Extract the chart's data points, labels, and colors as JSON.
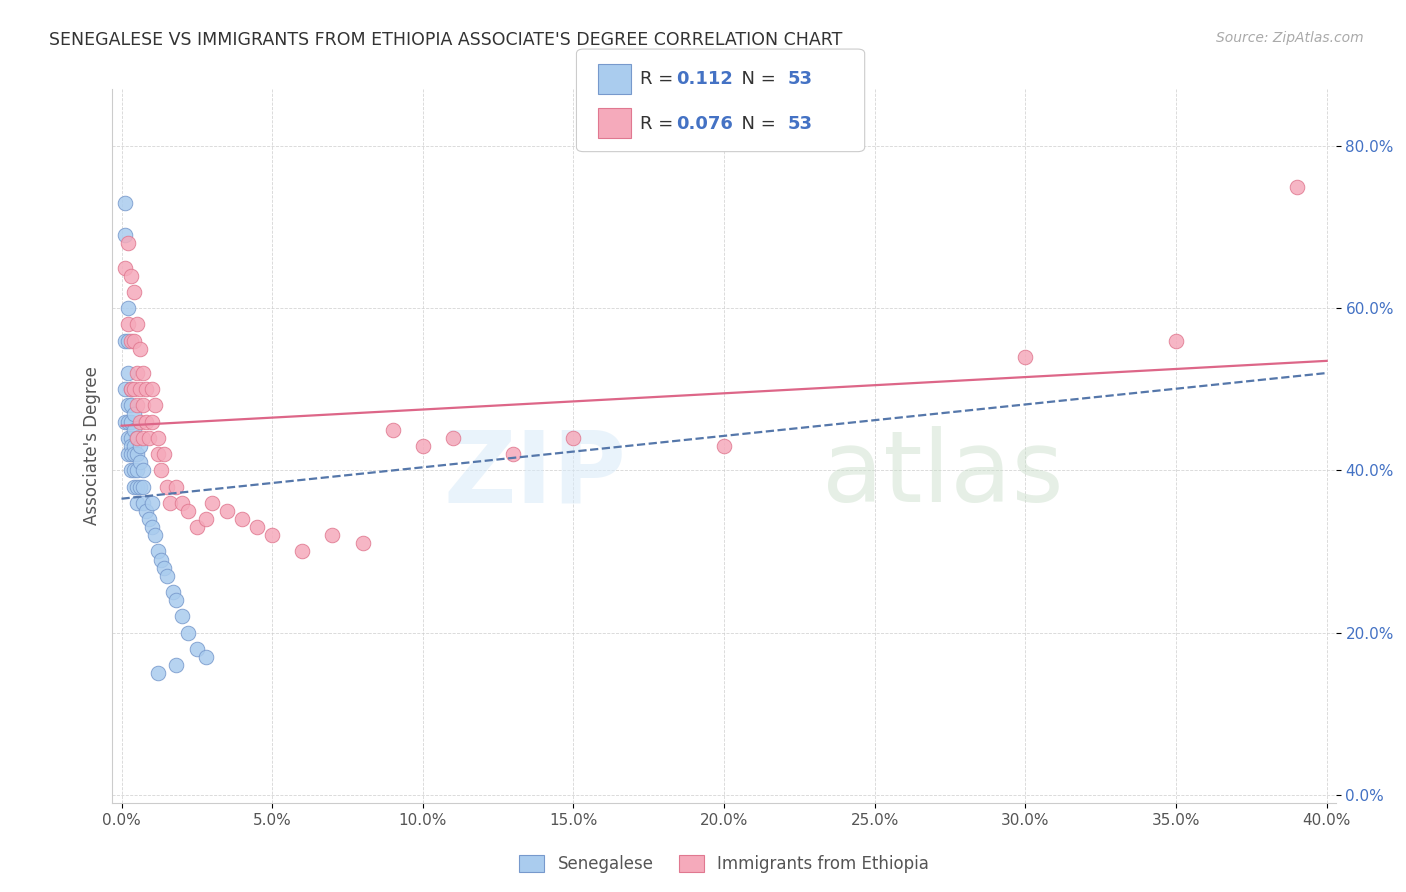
{
  "title": "SENEGALESE VS IMMIGRANTS FROM ETHIOPIA ASSOCIATE'S DEGREE CORRELATION CHART",
  "source": "Source: ZipAtlas.com",
  "ylabel": "Associate's Degree",
  "xlim": [
    -0.003,
    0.403
  ],
  "ylim": [
    -0.01,
    0.87
  ],
  "xticks": [
    0.0,
    0.05,
    0.1,
    0.15,
    0.2,
    0.25,
    0.3,
    0.35,
    0.4
  ],
  "yticks": [
    0.0,
    0.2,
    0.4,
    0.6,
    0.8
  ],
  "xtick_labels": [
    "0.0%",
    "5.0%",
    "10.0%",
    "15.0%",
    "20.0%",
    "25.0%",
    "30.0%",
    "35.0%",
    "40.0%"
  ],
  "ytick_labels": [
    "0.0%",
    "20.0%",
    "40.0%",
    "60.0%",
    "80.0%"
  ],
  "legend_labels": [
    "Senegalese",
    "Immigrants from Ethiopia"
  ],
  "R_senegalese": 0.112,
  "N_senegalese": 53,
  "R_ethiopia": 0.076,
  "N_ethiopia": 53,
  "blue_scatter_color": "#aaccee",
  "blue_edge_color": "#7799cc",
  "pink_scatter_color": "#f5aabb",
  "pink_edge_color": "#e07890",
  "blue_line_color": "#5577aa",
  "pink_line_color": "#dd6688",
  "senegalese_x": [
    0.001,
    0.001,
    0.001,
    0.001,
    0.001,
    0.002,
    0.002,
    0.002,
    0.002,
    0.002,
    0.002,
    0.002,
    0.003,
    0.003,
    0.003,
    0.003,
    0.003,
    0.003,
    0.003,
    0.004,
    0.004,
    0.004,
    0.004,
    0.004,
    0.004,
    0.005,
    0.005,
    0.005,
    0.005,
    0.005,
    0.006,
    0.006,
    0.006,
    0.007,
    0.007,
    0.007,
    0.008,
    0.009,
    0.01,
    0.01,
    0.011,
    0.012,
    0.013,
    0.014,
    0.015,
    0.017,
    0.018,
    0.02,
    0.022,
    0.025,
    0.028,
    0.018,
    0.012
  ],
  "senegalese_y": [
    0.73,
    0.69,
    0.56,
    0.5,
    0.46,
    0.6,
    0.56,
    0.52,
    0.48,
    0.46,
    0.44,
    0.42,
    0.5,
    0.48,
    0.46,
    0.44,
    0.43,
    0.42,
    0.4,
    0.47,
    0.45,
    0.43,
    0.42,
    0.4,
    0.38,
    0.44,
    0.42,
    0.4,
    0.38,
    0.36,
    0.43,
    0.41,
    0.38,
    0.4,
    0.38,
    0.36,
    0.35,
    0.34,
    0.36,
    0.33,
    0.32,
    0.3,
    0.29,
    0.28,
    0.27,
    0.25,
    0.24,
    0.22,
    0.2,
    0.18,
    0.17,
    0.16,
    0.15
  ],
  "ethiopia_x": [
    0.001,
    0.002,
    0.002,
    0.003,
    0.003,
    0.003,
    0.004,
    0.004,
    0.004,
    0.005,
    0.005,
    0.005,
    0.005,
    0.006,
    0.006,
    0.006,
    0.007,
    0.007,
    0.007,
    0.008,
    0.008,
    0.009,
    0.01,
    0.01,
    0.011,
    0.012,
    0.012,
    0.013,
    0.014,
    0.015,
    0.016,
    0.018,
    0.02,
    0.022,
    0.025,
    0.028,
    0.03,
    0.035,
    0.04,
    0.045,
    0.05,
    0.06,
    0.07,
    0.08,
    0.09,
    0.1,
    0.11,
    0.13,
    0.15,
    0.2,
    0.3,
    0.35,
    0.39
  ],
  "ethiopia_y": [
    0.65,
    0.68,
    0.58,
    0.64,
    0.56,
    0.5,
    0.62,
    0.56,
    0.5,
    0.58,
    0.52,
    0.48,
    0.44,
    0.55,
    0.5,
    0.46,
    0.52,
    0.48,
    0.44,
    0.5,
    0.46,
    0.44,
    0.5,
    0.46,
    0.48,
    0.44,
    0.42,
    0.4,
    0.42,
    0.38,
    0.36,
    0.38,
    0.36,
    0.35,
    0.33,
    0.34,
    0.36,
    0.35,
    0.34,
    0.33,
    0.32,
    0.3,
    0.32,
    0.31,
    0.45,
    0.43,
    0.44,
    0.42,
    0.44,
    0.43,
    0.54,
    0.56,
    0.75
  ]
}
